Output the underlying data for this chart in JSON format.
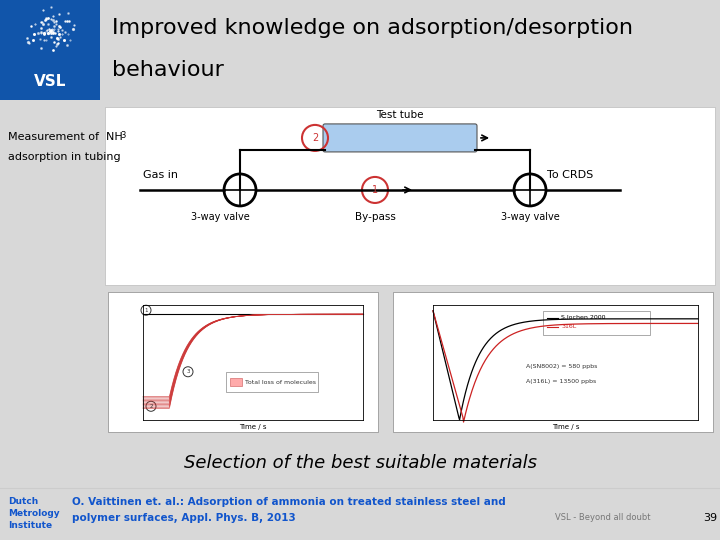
{
  "title_line1": "Improved knowledge on adsorption/desorption",
  "title_line2": "behaviour",
  "title_fontsize": 18,
  "vsl_bg_color": "#1155aa",
  "vsl_dot_color": "#ffffff",
  "bg_color": "#d8d8d8",
  "header_bg": "#ffffff",
  "content_bg": "#e0e0e0",
  "white_box_bg": "#ffffff",
  "label_nh3_line1": "Measurement of  NH",
  "label_nh3_sub": "3",
  "label_nh3_line2": "adsorption in tubing",
  "label_fontsize": 8,
  "test_tube_label": "Test tube",
  "gas_in_label": "Gas in",
  "to_crds_label": "To CRDS",
  "valve_label": "3-way valve",
  "bypass_label": "By-pass",
  "tube_color": "#aaccee",
  "circle_color_red": "#cc3333",
  "circle_color_black": "#222222",
  "selection_text": "Selection of the best suitable materials",
  "selection_fontsize": 13,
  "footer_bg": "#ffffff",
  "footer_dutch": "Dutch",
  "footer_metrology": "Metrology",
  "footer_institute": "Institute",
  "footer_ref1": "O. Vaittinen et. al.: Adsorption of ammonia on treated stainless steel and",
  "footer_ref2": "polymer surfaces, Appl. Phys. B, 2013",
  "footer_ref_color": "#1155cc",
  "footer_vsl": "VSL - Beyond all doubt",
  "footer_page": "39",
  "footer_gray": "#777777"
}
